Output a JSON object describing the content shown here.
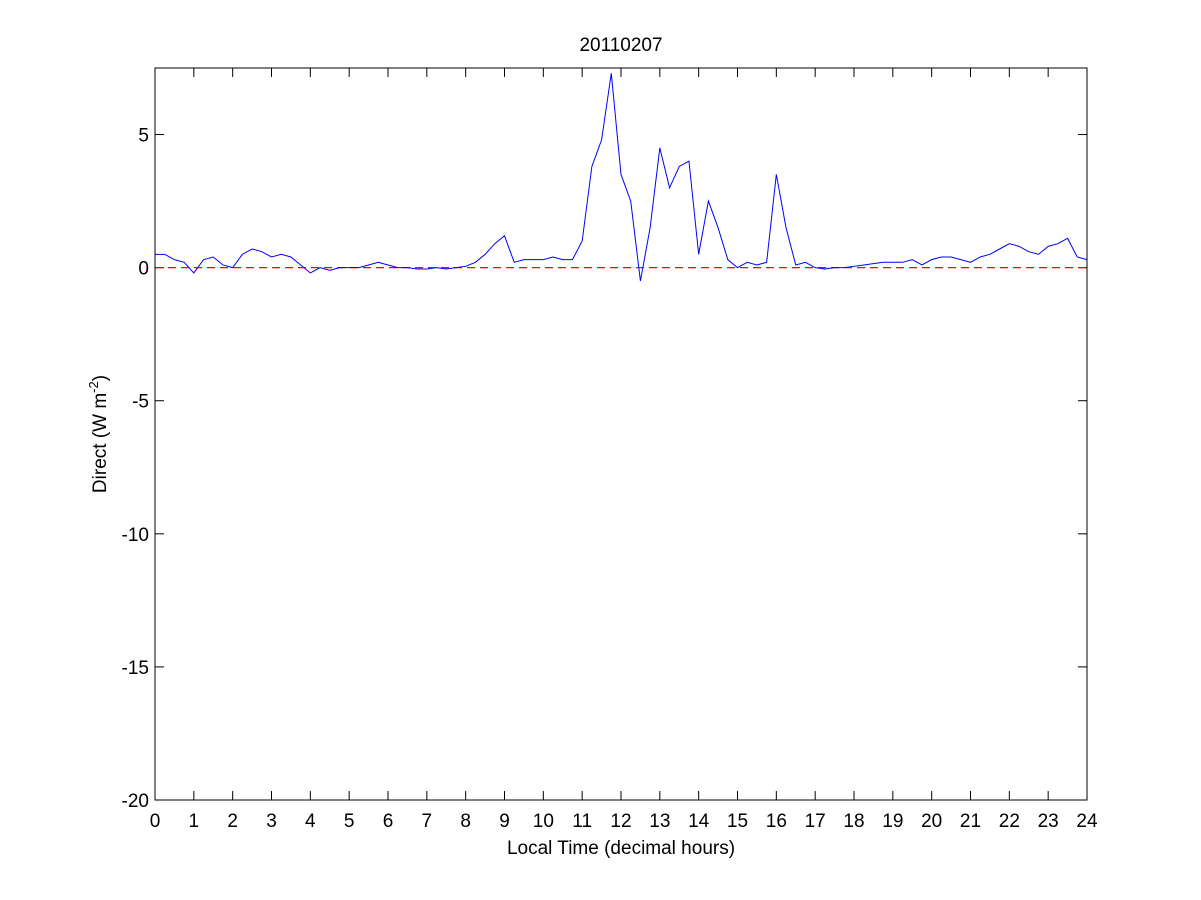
{
  "chart_data": {
    "type": "line",
    "title": "20110207",
    "xlabel": "Local Time (decimal hours)",
    "ylabel": {
      "text": "Direct (W m",
      "superscript": "-2",
      "suffix": ")"
    },
    "x": [
      0,
      0.25,
      0.5,
      0.75,
      1,
      1.25,
      1.5,
      1.75,
      2,
      2.25,
      2.5,
      2.75,
      3,
      3.25,
      3.5,
      3.75,
      4,
      4.25,
      4.5,
      4.75,
      5,
      5.25,
      5.5,
      5.75,
      6,
      6.25,
      6.5,
      6.75,
      7,
      7.25,
      7.5,
      7.75,
      8,
      8.25,
      8.5,
      8.75,
      9,
      9.25,
      9.5,
      9.75,
      10,
      10.25,
      10.5,
      10.75,
      11,
      11.25,
      11.5,
      11.75,
      12,
      12.25,
      12.5,
      12.75,
      13,
      13.25,
      13.5,
      13.75,
      14,
      14.25,
      14.5,
      14.75,
      15,
      15.25,
      15.5,
      15.75,
      16,
      16.25,
      16.5,
      16.75,
      17,
      17.25,
      17.5,
      17.75,
      18,
      18.25,
      18.5,
      18.75,
      19,
      19.25,
      19.5,
      19.75,
      20,
      20.25,
      20.5,
      20.75,
      21,
      21.25,
      21.5,
      21.75,
      22,
      22.25,
      22.5,
      22.75,
      23,
      23.25,
      23.5,
      23.75,
      24
    ],
    "series": [
      {
        "name": "Direct",
        "color": "#0000ff",
        "values": [
          0.5,
          0.5,
          0.3,
          0.2,
          -0.2,
          0.3,
          0.4,
          0.1,
          0.0,
          0.5,
          0.7,
          0.6,
          0.4,
          0.5,
          0.4,
          0.1,
          -0.2,
          0.0,
          -0.1,
          0.0,
          0.0,
          0.0,
          0.1,
          0.2,
          0.1,
          0.0,
          0.0,
          -0.05,
          -0.05,
          0.0,
          -0.05,
          0.0,
          0.05,
          0.2,
          0.5,
          0.9,
          1.2,
          0.2,
          0.3,
          0.3,
          0.3,
          0.4,
          0.3,
          0.3,
          1.0,
          3.8,
          4.8,
          7.3,
          3.5,
          2.5,
          -0.5,
          1.5,
          4.5,
          3.0,
          3.8,
          4.0,
          0.5,
          2.5,
          1.5,
          0.3,
          0.0,
          0.2,
          0.1,
          0.2,
          3.5,
          1.5,
          0.1,
          0.2,
          0.0,
          -0.05,
          0.0,
          0.0,
          0.05,
          0.1,
          0.15,
          0.2,
          0.2,
          0.2,
          0.3,
          0.1,
          0.3,
          0.4,
          0.4,
          0.3,
          0.2,
          0.4,
          0.5,
          0.7,
          0.9,
          0.8,
          0.6,
          0.5,
          0.8,
          0.9,
          1.1,
          0.4,
          0.3
        ]
      }
    ],
    "reference_line": {
      "value": 0,
      "color": "#ff0000",
      "dashed": true
    },
    "xlim": [
      0,
      24
    ],
    "xticks": [
      0,
      1,
      2,
      3,
      4,
      5,
      6,
      7,
      8,
      9,
      10,
      11,
      12,
      13,
      14,
      15,
      16,
      17,
      18,
      19,
      20,
      21,
      22,
      23,
      24
    ],
    "ylim": [
      -20,
      7.5
    ],
    "yticks": [
      -20,
      -15,
      -10,
      -5,
      0,
      5
    ],
    "grid": false
  }
}
